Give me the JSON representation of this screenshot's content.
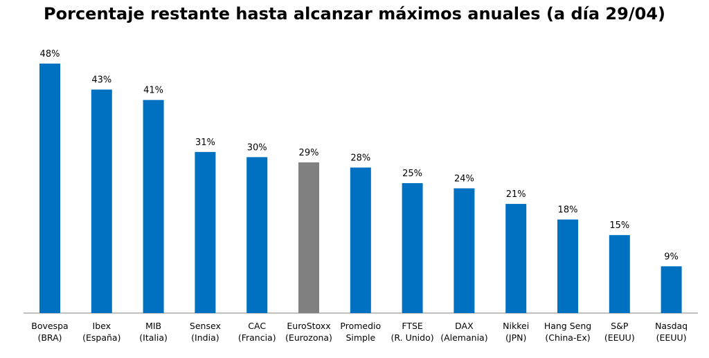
{
  "chart_data": {
    "type": "bar",
    "title": "Porcentaje restante hasta alcanzar máximos anuales (a día 29/04)",
    "categories": [
      [
        "Bovespa",
        "(BRA)"
      ],
      [
        "Ibex",
        "(España)"
      ],
      [
        "MIB",
        "(Italia)"
      ],
      [
        "Sensex",
        "(India)"
      ],
      [
        "CAC",
        "(Francia)"
      ],
      [
        "EuroStoxx",
        "(Eurozona)"
      ],
      [
        "Promedio",
        "Simple"
      ],
      [
        "FTSE",
        "(R. Unido)"
      ],
      [
        "DAX",
        "(Alemania)"
      ],
      [
        "Nikkei",
        "(JPN)"
      ],
      [
        "Hang Seng",
        "(China-Ex)"
      ],
      [
        "S&P",
        "(EEUU)"
      ],
      [
        "Nasdaq",
        "(EEUU)"
      ]
    ],
    "values": [
      48,
      43,
      41,
      31,
      30,
      29,
      28,
      25,
      24,
      21,
      18,
      15,
      9
    ],
    "value_labels": [
      "48%",
      "43%",
      "41%",
      "31%",
      "30%",
      "29%",
      "28%",
      "25%",
      "24%",
      "21%",
      "18%",
      "15%",
      "9%"
    ],
    "bar_colors": [
      "#0070C0",
      "#0070C0",
      "#0070C0",
      "#0070C0",
      "#0070C0",
      "#808080",
      "#0070C0",
      "#0070C0",
      "#0070C0",
      "#0070C0",
      "#0070C0",
      "#0070C0",
      "#0070C0"
    ],
    "xlabel": "",
    "ylabel": "",
    "ylim": [
      0,
      48
    ],
    "grid": false,
    "legend": "none"
  }
}
